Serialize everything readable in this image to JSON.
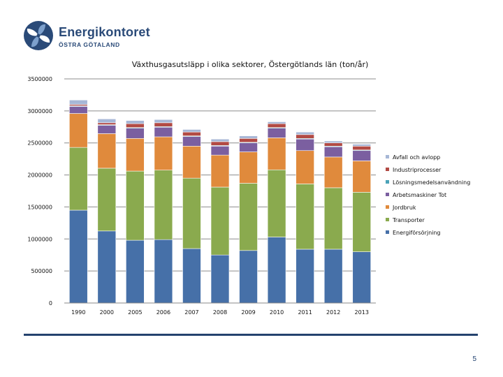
{
  "brand": {
    "name": "Energikontoret",
    "subtitle": "ÖSTRA GÖTALAND",
    "colors": {
      "primary": "#2a4a78",
      "light": "#7da0cc"
    }
  },
  "page_number": "5",
  "chart_data": {
    "type": "bar",
    "stacked": true,
    "title": "Växthusgasutsläpp i olika sektorer, Östergötlands län (ton/år)",
    "xlabel": "",
    "ylabel": "",
    "ylim": [
      0,
      3500000
    ],
    "yticks": [
      0,
      500000,
      1000000,
      1500000,
      2000000,
      2500000,
      3000000,
      3500000
    ],
    "ytick_labels": [
      "0",
      "500000",
      "1000000",
      "1500000",
      "2000000",
      "2500000",
      "3000000",
      "3500000"
    ],
    "grid": true,
    "legend_position": "right",
    "categories": [
      "1990",
      "2000",
      "2005",
      "2006",
      "2007",
      "2008",
      "2009",
      "2010",
      "2011",
      "2012",
      "2013"
    ],
    "series": [
      {
        "name": "Energiförsörjning",
        "color": "#4670a8",
        "values": [
          1450000,
          1125000,
          980000,
          990000,
          850000,
          750000,
          820000,
          1030000,
          840000,
          840000,
          800000
        ]
      },
      {
        "name": "Transporter",
        "color": "#8aaa4e",
        "values": [
          980000,
          980000,
          1080000,
          1085000,
          1100000,
          1060000,
          1050000,
          1050000,
          1020000,
          960000,
          930000
        ]
      },
      {
        "name": "Jordbruk",
        "color": "#e08a3c",
        "values": [
          530000,
          540000,
          510000,
          520000,
          500000,
          500000,
          490000,
          500000,
          520000,
          480000,
          490000
        ]
      },
      {
        "name": "Arbetsmaskiner Tot",
        "color": "#7b5fa0",
        "values": [
          110000,
          130000,
          160000,
          150000,
          150000,
          140000,
          140000,
          150000,
          180000,
          160000,
          160000
        ]
      },
      {
        "name": "Lösningsmedelsanvändning",
        "color": "#4aa3b8",
        "values": [
          10000,
          10000,
          10000,
          10000,
          10000,
          10000,
          10000,
          10000,
          10000,
          10000,
          10000
        ]
      },
      {
        "name": "Industriprocesser",
        "color": "#b24a44",
        "values": [
          20000,
          30000,
          60000,
          60000,
          60000,
          60000,
          60000,
          60000,
          60000,
          50000,
          60000
        ]
      },
      {
        "name": "Avfall och avlopp",
        "color": "#a7b7d6",
        "values": [
          70000,
          60000,
          50000,
          50000,
          40000,
          40000,
          40000,
          30000,
          40000,
          30000,
          30000
        ]
      }
    ],
    "legend_order": [
      "Avfall och avlopp",
      "Industriprocesser",
      "Lösningsmedelsanvändning",
      "Arbetsmaskiner Tot",
      "Jordbruk",
      "Transporter",
      "Energiförsörjning"
    ]
  }
}
